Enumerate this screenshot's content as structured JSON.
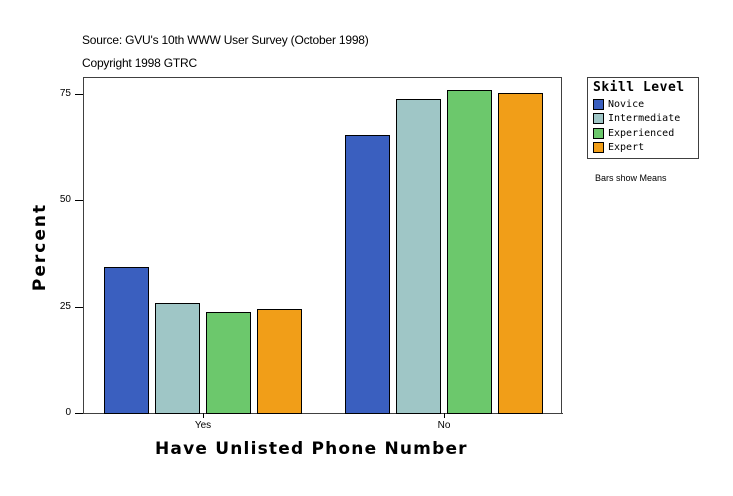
{
  "header": {
    "source": "Source: GVU's 10th WWW User Survey (October 1998)",
    "copyright": "Copyright 1998 GTRC"
  },
  "legend": {
    "title": "Skill Level",
    "items": [
      {
        "label": "Novice",
        "color": "#3a5fbf"
      },
      {
        "label": "Intermediate",
        "color": "#9fc6c6"
      },
      {
        "label": "Experienced",
        "color": "#6cc86c"
      },
      {
        "label": "Expert",
        "color": "#f19e18"
      }
    ]
  },
  "note": "Bars show Means",
  "axes": {
    "ylabel": "Percent",
    "xlabel": "Have Unlisted Phone Number",
    "yticks": [
      "0",
      "25",
      "50",
      "75"
    ]
  },
  "chart_data": {
    "type": "bar",
    "title": "",
    "subtitle": "Source: GVU's 10th WWW User Survey (October 1998) / Copyright 1998 GTRC",
    "xlabel": "Have Unlisted Phone Number",
    "ylabel": "Percent",
    "categories": [
      "Yes",
      "No"
    ],
    "series": [
      {
        "name": "Novice",
        "color": "#3a5fbf",
        "values": [
          34.3,
          65.4
        ]
      },
      {
        "name": "Intermediate",
        "color": "#9fc6c6",
        "values": [
          25.9,
          73.8
        ]
      },
      {
        "name": "Experienced",
        "color": "#6cc86c",
        "values": [
          23.7,
          75.9
        ]
      },
      {
        "name": "Expert",
        "color": "#f19e18",
        "values": [
          24.5,
          75.2
        ]
      }
    ],
    "ylim": [
      0,
      79
    ],
    "yticks": [
      0,
      25,
      50,
      75
    ],
    "grid": false,
    "legend_position": "right",
    "legend_title": "Skill Level",
    "annotations": [
      "Bars show Means"
    ]
  }
}
